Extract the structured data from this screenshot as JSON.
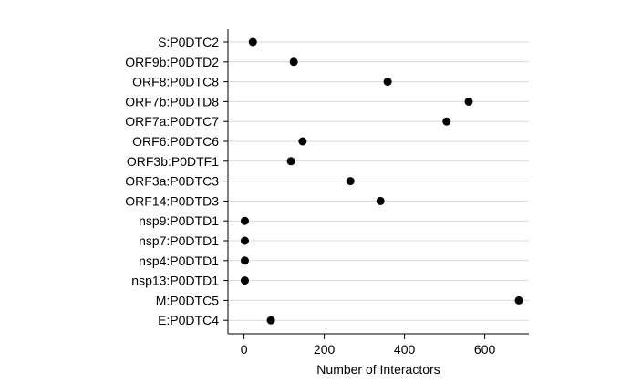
{
  "chart_data": {
    "type": "scatter",
    "orientation": "horizontal-dot-plot",
    "categories": [
      "S:P0DTC2",
      "ORF9b:P0DTD2",
      "ORF8:P0DTC8",
      "ORF7b:P0DTD8",
      "ORF7a:P0DTC7",
      "ORF6:P0DTC6",
      "ORF3b:P0DTF1",
      "ORF3a:P0DTC3",
      "ORF14:P0DTD3",
      "nsp9:P0DTD1",
      "nsp7:P0DTD1",
      "nsp4:P0DTD1",
      "nsp13:P0DTD1",
      "M:P0DTC5",
      "E:P0DTC4"
    ],
    "values": [
      22,
      124,
      358,
      560,
      505,
      146,
      117,
      265,
      340,
      2,
      2,
      2,
      2,
      685,
      67
    ],
    "xlabel": "Number of Interactors",
    "ylabel": "",
    "title": "",
    "xlim": [
      -40,
      710
    ],
    "xticks": [
      0,
      200,
      400,
      600
    ],
    "grid": "horizontal",
    "marker_color": "#000000"
  }
}
